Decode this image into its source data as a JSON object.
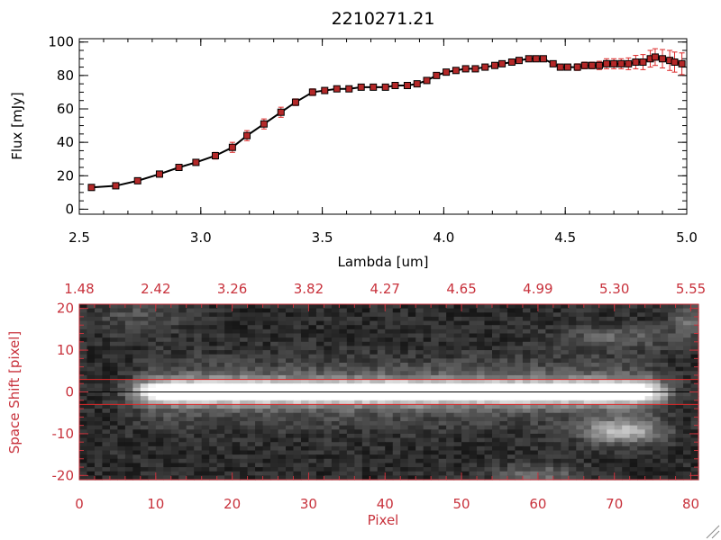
{
  "chart_data": [
    {
      "type": "line",
      "title": "2210271.21",
      "xlabel": "Lambda [um]",
      "ylabel": "Flux [mJy]",
      "xlim": [
        2.5,
        5.0
      ],
      "ylim": [
        -3,
        102
      ],
      "x_ticks": [
        2.5,
        3.0,
        3.5,
        4.0,
        4.5,
        5.0
      ],
      "x_tick_labels": [
        "2.5",
        "3.0",
        "3.5",
        "4.0",
        "4.5",
        "5.0"
      ],
      "y_ticks": [
        0,
        20,
        40,
        60,
        80,
        100
      ],
      "y_tick_labels": [
        "0",
        "20",
        "40",
        "60",
        "80",
        "100"
      ],
      "colors": {
        "line": "#000000",
        "marker": "#b42828",
        "errorbar": "#dc2828"
      },
      "series": [
        {
          "name": "flux",
          "x": [
            2.55,
            2.65,
            2.74,
            2.83,
            2.91,
            2.98,
            3.06,
            3.13,
            3.19,
            3.26,
            3.33,
            3.39,
            3.46,
            3.51,
            3.56,
            3.61,
            3.66,
            3.71,
            3.76,
            3.8,
            3.85,
            3.89,
            3.93,
            3.97,
            4.01,
            4.05,
            4.09,
            4.13,
            4.17,
            4.21,
            4.24,
            4.28,
            4.31,
            4.35,
            4.38,
            4.41,
            4.45,
            4.48,
            4.51,
            4.55,
            4.58,
            4.61,
            4.64,
            4.67,
            4.7,
            4.73,
            4.76,
            4.79,
            4.82,
            4.85,
            4.87,
            4.9,
            4.93,
            4.95,
            4.98
          ],
          "y": [
            13,
            14,
            17,
            21,
            25,
            28,
            32,
            37,
            44,
            51,
            58,
            64,
            70,
            71,
            72,
            72,
            73,
            73,
            73,
            74,
            74,
            75,
            77,
            80,
            82,
            83,
            84,
            84,
            85,
            86,
            87,
            88,
            89,
            90,
            90,
            90,
            87,
            85,
            85,
            85,
            86,
            86,
            86,
            87,
            87,
            87,
            87,
            88,
            88,
            90,
            91,
            90,
            89,
            88,
            87
          ],
          "err": [
            1,
            1,
            1,
            1.5,
            1.5,
            1.5,
            2,
            3,
            3,
            3,
            3,
            2,
            2,
            1.5,
            1.5,
            1.5,
            1.5,
            1.5,
            1.5,
            1.5,
            1.5,
            1.5,
            1.5,
            1.5,
            1.5,
            1.5,
            1.5,
            1.5,
            1.5,
            1.5,
            1.5,
            1.5,
            1.5,
            1.5,
            1.5,
            1.5,
            1.5,
            1.5,
            1.5,
            2,
            2,
            2,
            2.5,
            3,
            3,
            3,
            3.5,
            4,
            4.5,
            5,
            5,
            5.5,
            6,
            6,
            6.5
          ]
        }
      ]
    },
    {
      "type": "heatmap",
      "xlabel": "Pixel",
      "ylabel": "Space Shift [pixel]",
      "xlim": [
        0,
        81
      ],
      "ylim": [
        -21,
        21
      ],
      "x_ticks": [
        0,
        10,
        20,
        30,
        40,
        50,
        60,
        70,
        80
      ],
      "x_tick_labels": [
        "0",
        "10",
        "20",
        "30",
        "40",
        "50",
        "60",
        "70",
        "80"
      ],
      "y_ticks": [
        -20,
        -10,
        0,
        10,
        20
      ],
      "y_tick_labels": [
        "-20",
        "-10",
        "0",
        "10",
        "20"
      ],
      "top_axis_label_values": [
        "1.48",
        "2.42",
        "3.26",
        "3.82",
        "4.27",
        "4.65",
        "4.99",
        "5.30",
        "5.55"
      ],
      "colors": {
        "axis": "#c8323c",
        "aperture": "#e02828",
        "centerline": "#000000"
      },
      "aperture_y": [
        -3,
        3
      ],
      "center_y": 0,
      "grid_size": [
        81,
        42
      ],
      "noise_seed": 7,
      "background_level": 0.08,
      "trace": {
        "y_center": 0,
        "sigma": 1.8,
        "x_start": 5,
        "x_end": 79,
        "peak": 1.0,
        "halo_sigma": 5,
        "halo_amp": 0.25
      },
      "blobs": [
        {
          "x": 71,
          "y": -9.5,
          "sx": 3.5,
          "sy": 2,
          "amp": 0.55
        },
        {
          "x": 70,
          "y": 13,
          "sx": 5,
          "sy": 2,
          "amp": 0.22
        },
        {
          "x": 60,
          "y": -20,
          "sx": 4,
          "sy": 2,
          "amp": 0.25
        },
        {
          "x": 8,
          "y": 18,
          "sx": 4,
          "sy": 3,
          "amp": 0.15
        },
        {
          "x": 80,
          "y": 17,
          "sx": 2,
          "sy": 3,
          "amp": 0.25
        }
      ]
    }
  ]
}
